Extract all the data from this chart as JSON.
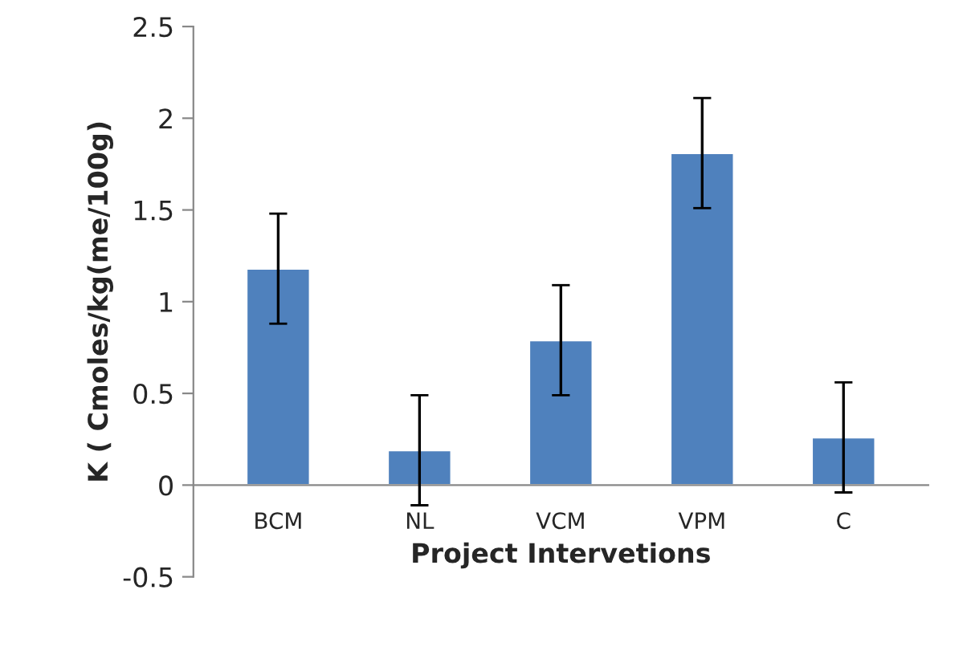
{
  "chart_data": {
    "type": "bar",
    "xlabel": "Project Intervetions",
    "ylabel": "K ( Cmoles/kg(me/100g)",
    "categories": [
      "BCM",
      "NL",
      "VCM",
      "VPM",
      "C"
    ],
    "values": [
      1.18,
      0.19,
      0.79,
      1.81,
      0.26
    ],
    "errors": [
      0.3,
      0.3,
      0.3,
      0.3,
      0.3
    ],
    "color": "#4f81bd",
    "ylim": [
      -0.5,
      2.5
    ],
    "yticks": [
      -0.5,
      0,
      0.5,
      1,
      1.5,
      2,
      2.5
    ],
    "grid": false
  }
}
